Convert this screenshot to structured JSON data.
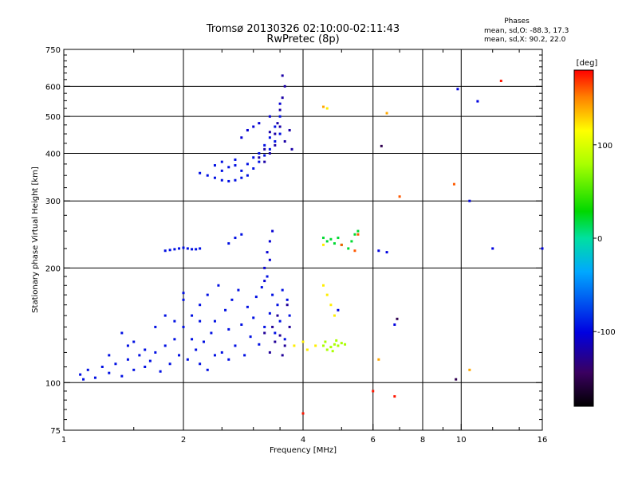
{
  "chart_data": {
    "type": "scatter",
    "title": "Tromsø 20130326 02:10:00-02:11:43",
    "subtitle": "RwPretec (8p)",
    "xlabel": "Frequency [MHz]",
    "ylabel": "Stationary phase Virtual Height [km]",
    "x_scale": "log",
    "y_scale": "log",
    "xlim": [
      1,
      16
    ],
    "ylim": [
      75,
      750
    ],
    "x_ticks": [
      1,
      2,
      4,
      6,
      8,
      10,
      16
    ],
    "x_tick_labels": [
      "1",
      "2",
      "4",
      "6",
      "8",
      "10",
      "16"
    ],
    "y_ticks": [
      75,
      100,
      200,
      300,
      400,
      500,
      600,
      750
    ],
    "y_tick_labels": [
      "75",
      "100",
      "200",
      "300",
      "400",
      "500",
      "600",
      "750"
    ],
    "x_gridlines": [
      2,
      4,
      6,
      8,
      10
    ],
    "y_gridlines": [
      100,
      200,
      300,
      400,
      500,
      600
    ],
    "grid": true,
    "phases": {
      "heading": "Phases",
      "line1": "mean, sd,O: -88.3, 17.3",
      "line2": "mean, sd,X:  90.2, 22.0"
    },
    "colorbar": {
      "label": "[deg]",
      "range": [
        -180,
        180
      ],
      "ticks": [
        100,
        0,
        -100
      ],
      "tick_labels": [
        "100",
        "0",
        "-100"
      ]
    },
    "series": [
      {
        "phase": -95,
        "points": [
          [
            1.1,
            105
          ],
          [
            1.12,
            102
          ],
          [
            1.15,
            108
          ],
          [
            1.2,
            103
          ],
          [
            1.25,
            110
          ],
          [
            1.3,
            106
          ],
          [
            1.35,
            112
          ],
          [
            1.4,
            104
          ],
          [
            1.45,
            115
          ],
          [
            1.5,
            108
          ],
          [
            1.55,
            118
          ],
          [
            1.6,
            110
          ],
          [
            1.65,
            114
          ],
          [
            1.7,
            120
          ],
          [
            1.75,
            107
          ],
          [
            1.8,
            125
          ],
          [
            1.85,
            112
          ],
          [
            1.9,
            130
          ],
          [
            1.95,
            118
          ],
          [
            2.0,
            140
          ],
          [
            2.05,
            115
          ],
          [
            2.1,
            150
          ],
          [
            2.15,
            122
          ],
          [
            2.2,
            160
          ],
          [
            2.25,
            128
          ],
          [
            2.3,
            170
          ],
          [
            2.35,
            135
          ],
          [
            2.4,
            145
          ],
          [
            2.45,
            180
          ],
          [
            2.5,
            120
          ],
          [
            2.55,
            155
          ],
          [
            2.6,
            138
          ],
          [
            2.65,
            165
          ],
          [
            2.7,
            125
          ],
          [
            2.75,
            175
          ],
          [
            2.8,
            142
          ],
          [
            2.85,
            118
          ],
          [
            2.9,
            158
          ],
          [
            2.95,
            132
          ],
          [
            3.0,
            148
          ],
          [
            3.05,
            168
          ],
          [
            3.1,
            126
          ],
          [
            3.15,
            178
          ],
          [
            3.2,
            140
          ],
          [
            3.25,
            190
          ],
          [
            3.3,
            152
          ],
          [
            3.35,
            170
          ],
          [
            3.4,
            135
          ],
          [
            3.45,
            160
          ],
          [
            3.5,
            145
          ],
          [
            3.55,
            175
          ],
          [
            3.6,
            130
          ],
          [
            3.65,
            165
          ],
          [
            3.7,
            150
          ],
          [
            1.4,
            135
          ],
          [
            1.5,
            128
          ],
          [
            1.6,
            122
          ],
          [
            1.7,
            140
          ],
          [
            1.8,
            150
          ],
          [
            1.9,
            145
          ],
          [
            2.0,
            165
          ],
          [
            2.1,
            130
          ],
          [
            2.2,
            112
          ],
          [
            2.3,
            108
          ],
          [
            2.4,
            118
          ],
          [
            1.3,
            118
          ],
          [
            1.45,
            125
          ],
          [
            2.0,
            172
          ],
          [
            2.2,
            145
          ],
          [
            2.6,
            115
          ]
        ]
      },
      {
        "phase": -125,
        "points": [
          [
            3.3,
            120
          ],
          [
            3.4,
            128
          ],
          [
            3.5,
            133
          ],
          [
            3.6,
            125
          ],
          [
            3.7,
            140
          ],
          [
            3.45,
            150
          ],
          [
            3.55,
            118
          ],
          [
            3.65,
            160
          ],
          [
            3.2,
            135
          ],
          [
            3.35,
            140
          ]
        ]
      },
      {
        "phase": -95,
        "points": [
          [
            1.8,
            222
          ],
          [
            1.85,
            223
          ],
          [
            1.9,
            224
          ],
          [
            1.95,
            225
          ],
          [
            2.0,
            226
          ],
          [
            2.05,
            225
          ],
          [
            2.1,
            224
          ],
          [
            2.15,
            224
          ],
          [
            2.2,
            225
          ],
          [
            2.6,
            232
          ],
          [
            2.7,
            240
          ],
          [
            2.8,
            245
          ]
        ]
      },
      {
        "phase": -105,
        "points": [
          [
            3.2,
            200
          ],
          [
            3.25,
            220
          ],
          [
            3.3,
            235
          ],
          [
            3.35,
            250
          ],
          [
            3.2,
            185
          ],
          [
            3.3,
            210
          ]
        ]
      },
      {
        "phase": -95,
        "points": [
          [
            2.2,
            355
          ],
          [
            2.3,
            350
          ],
          [
            2.4,
            345
          ],
          [
            2.5,
            340
          ],
          [
            2.6,
            338
          ],
          [
            2.7,
            340
          ],
          [
            2.8,
            345
          ],
          [
            2.9,
            350
          ],
          [
            3.0,
            365
          ],
          [
            3.1,
            380
          ],
          [
            3.2,
            395
          ],
          [
            3.3,
            410
          ],
          [
            3.4,
            430
          ],
          [
            3.5,
            450
          ],
          [
            2.5,
            360
          ],
          [
            2.6,
            368
          ],
          [
            2.7,
            372
          ],
          [
            2.8,
            360
          ],
          [
            2.9,
            375
          ],
          [
            3.0,
            390
          ],
          [
            2.4,
            372
          ],
          [
            2.5,
            380
          ],
          [
            2.7,
            385
          ],
          [
            3.1,
            400
          ],
          [
            3.3,
            440
          ],
          [
            3.4,
            470
          ],
          [
            3.5,
            500
          ],
          [
            3.2,
            420
          ]
        ]
      },
      {
        "phase": -120,
        "points": [
          [
            3.2,
            380
          ],
          [
            3.3,
            400
          ],
          [
            3.4,
            420
          ],
          [
            3.45,
            480
          ],
          [
            3.5,
            520
          ],
          [
            3.55,
            560
          ],
          [
            3.6,
            600
          ],
          [
            3.55,
            640
          ],
          [
            3.4,
            450
          ],
          [
            3.5,
            470
          ],
          [
            3.6,
            430
          ],
          [
            3.7,
            460
          ],
          [
            3.75,
            410
          ],
          [
            3.1,
            390
          ],
          [
            3.3,
            455
          ],
          [
            3.2,
            410
          ]
        ]
      },
      {
        "phase": -105,
        "points": [
          [
            2.8,
            440
          ],
          [
            2.9,
            460
          ],
          [
            3.0,
            470
          ],
          [
            3.1,
            480
          ],
          [
            3.3,
            500
          ],
          [
            3.5,
            540
          ]
        ]
      },
      {
        "phase": 120,
        "points": [
          [
            3.8,
            125
          ],
          [
            4.0,
            128
          ],
          [
            4.1,
            122
          ],
          [
            4.3,
            125
          ],
          [
            4.5,
            180
          ],
          [
            4.6,
            170
          ],
          [
            4.7,
            160
          ],
          [
            4.8,
            150
          ],
          [
            4.5,
            230
          ],
          [
            4.6,
            525
          ]
        ]
      },
      {
        "phase": 80,
        "points": [
          [
            4.5,
            125
          ],
          [
            4.6,
            122
          ],
          [
            4.7,
            124
          ],
          [
            4.8,
            126
          ],
          [
            4.9,
            125
          ],
          [
            5.0,
            127
          ],
          [
            5.1,
            126
          ],
          [
            4.55,
            128
          ],
          [
            4.75,
            121
          ],
          [
            4.85,
            129
          ]
        ]
      },
      {
        "phase": 20,
        "points": [
          [
            4.5,
            240
          ],
          [
            4.6,
            235
          ],
          [
            4.7,
            238
          ],
          [
            4.8,
            232
          ],
          [
            4.9,
            240
          ],
          [
            5.0,
            230
          ],
          [
            5.2,
            225
          ],
          [
            5.4,
            245
          ],
          [
            5.5,
            250
          ],
          [
            5.3,
            235
          ]
        ]
      },
      {
        "phase": 160,
        "points": [
          [
            5.0,
            230
          ],
          [
            5.4,
            222
          ],
          [
            5.5,
            245
          ],
          [
            7.0,
            308
          ],
          [
            9.6,
            332
          ]
        ]
      },
      {
        "phase": -100,
        "points": [
          [
            6.2,
            222
          ],
          [
            6.5,
            220
          ],
          [
            6.8,
            142
          ],
          [
            4.9,
            155
          ],
          [
            10.5,
            300
          ],
          [
            12.0,
            225
          ],
          [
            16.0,
            225
          ],
          [
            9.8,
            590
          ],
          [
            11.0,
            548
          ]
        ]
      },
      {
        "phase": -150,
        "points": [
          [
            6.3,
            418
          ],
          [
            9.7,
            102
          ],
          [
            6.9,
            147
          ]
        ]
      },
      {
        "phase": 140,
        "points": [
          [
            10.5,
            108
          ],
          [
            6.5,
            510
          ],
          [
            6.2,
            115
          ],
          [
            4.5,
            530
          ]
        ]
      },
      {
        "phase": 175,
        "points": [
          [
            12.6,
            620
          ],
          [
            6.0,
            95
          ],
          [
            6.8,
            92
          ],
          [
            4.0,
            83
          ]
        ]
      }
    ]
  }
}
